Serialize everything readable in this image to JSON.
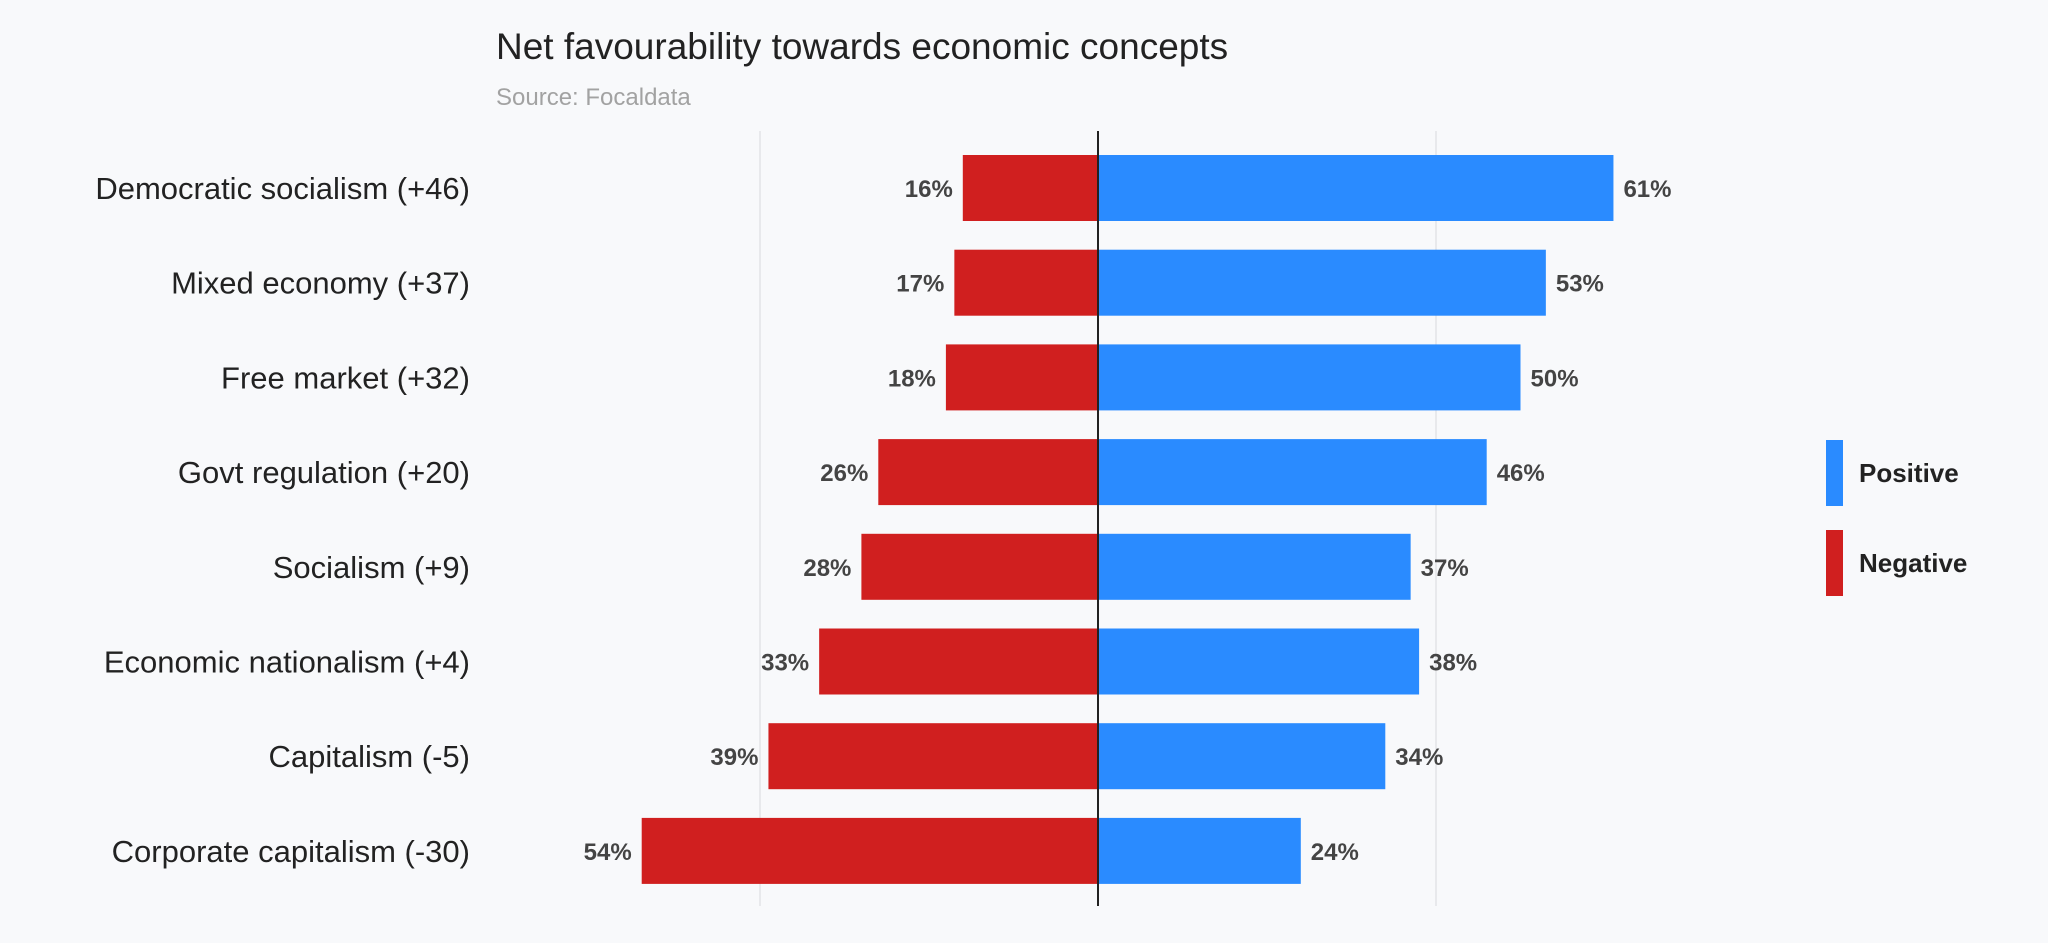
{
  "chart_data": {
    "type": "bar",
    "orientation": "horizontal-diverging",
    "title": "Net favourability towards economic concepts",
    "subtitle": "Source: Focaldata",
    "categories": [
      "Democratic socialism (+46)",
      "Mixed economy (+37)",
      "Free market (+32)",
      "Govt regulation (+20)",
      "Socialism (+9)",
      "Economic nationalism (+4)",
      "Capitalism (-5)",
      "Corporate capitalism (-30)"
    ],
    "series": [
      {
        "name": "Positive",
        "color": "#2a8bff",
        "values": [
          61,
          53,
          50,
          46,
          37,
          38,
          34,
          24
        ],
        "labels": [
          "61%",
          "53%",
          "50%",
          "46%",
          "37%",
          "38%",
          "34%",
          "24%"
        ]
      },
      {
        "name": "Negative",
        "color": "#d01f1f",
        "values": [
          16,
          17,
          18,
          26,
          28,
          33,
          39,
          54
        ],
        "labels": [
          "16%",
          "17%",
          "18%",
          "26%",
          "28%",
          "33%",
          "39%",
          "54%"
        ]
      }
    ],
    "xlim": [
      -60,
      80
    ],
    "gridlines": [
      -40,
      40
    ],
    "legend_position": "right"
  }
}
